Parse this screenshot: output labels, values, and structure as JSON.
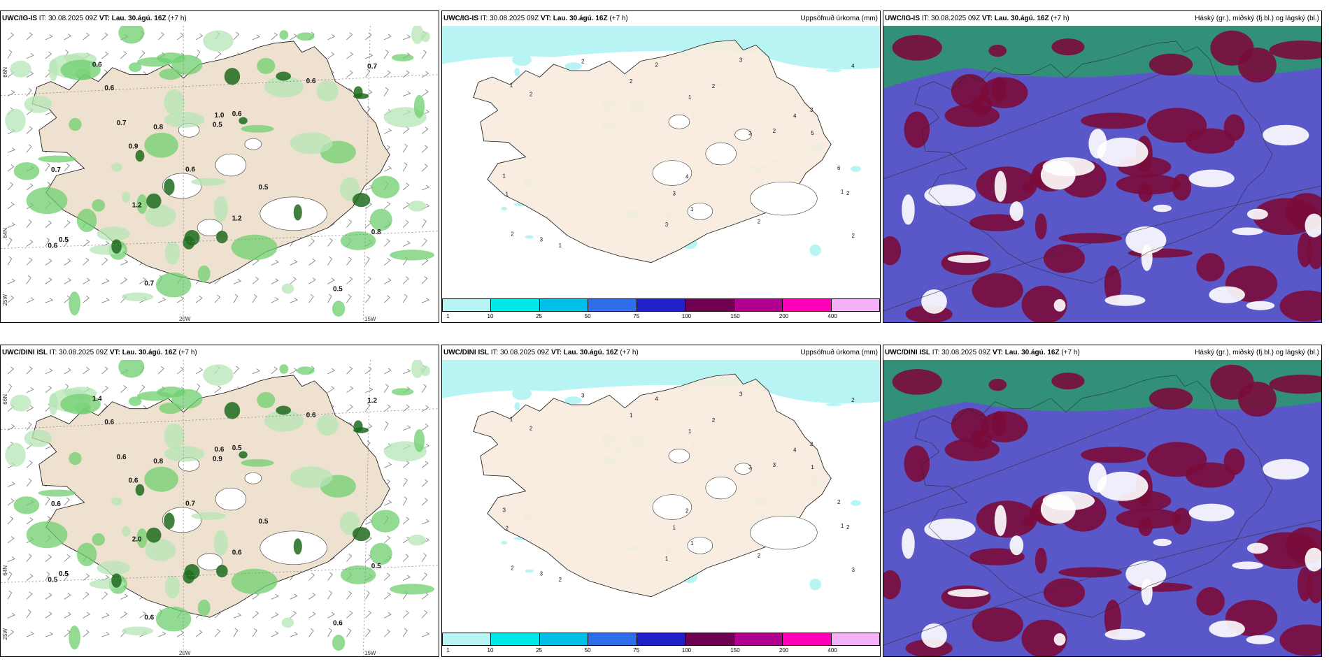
{
  "panels": [
    {
      "id": "p1",
      "model": "UWC/IG-IS",
      "it": "IT: 30.08.2025 09Z",
      "vt_label": "VT:",
      "vt": "Lau. 30.ágú. 16Z",
      "lead": "(+7 h)",
      "right": ""
    },
    {
      "id": "p2",
      "model": "UWC/IG-IS",
      "it": "IT: 30.08.2025 09Z",
      "vt_label": "VT:",
      "vt": "Lau. 30.ágú. 16Z",
      "lead": "(+7 h)",
      "right": "Uppsöfnuð úrkoma (mm)"
    },
    {
      "id": "p3",
      "model": "UWC/IG-IS",
      "it": "IT: 30.08.2025 09Z",
      "vt_label": "VT:",
      "vt": "Lau. 30.ágú. 16Z",
      "lead": "(+7 h)",
      "right": "Háský (gr.), miðský (fj.bl.) og lágský (bl.)"
    },
    {
      "id": "p4",
      "model": "UWC/DINI ISL",
      "it": "IT: 30.08.2025 09Z",
      "vt_label": "VT:",
      "vt": "Lau. 30.ágú. 16Z",
      "lead": "(+7 h)",
      "right": ""
    },
    {
      "id": "p5",
      "model": "UWC/DINI ISL",
      "it": "IT: 30.08.2025 09Z",
      "vt_label": "VT:",
      "vt": "Lau. 30.ágú. 16Z",
      "lead": "(+7 h)",
      "right": "Uppsöfnuð úrkoma (mm)"
    },
    {
      "id": "p6",
      "model": "UWC/DINI ISL",
      "it": "IT: 30.08.2025 09Z",
      "vt_label": "VT:",
      "vt": "Lau. 30.ágú. 16Z",
      "lead": "(+7 h)",
      "right": "Háský (gr.), miðský (fj.bl.) og lágský (bl.)"
    }
  ],
  "axes": {
    "lon_20": "20W",
    "lon_15": "15W",
    "lon_25": "25W",
    "lat_66": "66N",
    "lat_64": "64N"
  },
  "colorbar": {
    "labels": [
      "1",
      "10",
      "25",
      "50",
      "75",
      "100",
      "150",
      "200",
      "400"
    ],
    "colors": [
      "#b8f4f4",
      "#00e8e8",
      "#00c0e8",
      "#2e6ee8",
      "#2020c8",
      "#6e0050",
      "#b00090",
      "#ff00b8",
      "#f4b0f4"
    ]
  },
  "map_colors": {
    "land": "#f7ebdd",
    "land_dark": "#efe1cf",
    "green_light": "#b5e6b5",
    "green_mid": "#6fcf6f",
    "green_dark": "#1e6b1e",
    "rain_light": "#b8f4f4",
    "cloud_high": "#2b9a6b",
    "cloud_mid": "#7a0c3a",
    "cloud_low": "#5a57c8"
  },
  "wind_values_p1": [
    "0.6",
    "0.8",
    "0.7",
    "0.5",
    "0.6",
    "0.6",
    "0.7",
    "0.7",
    "0.6",
    "0.8",
    "0.5",
    "0.5",
    "0.5",
    "1.0",
    "1.2",
    "0.6",
    "0.9",
    "1.2",
    "0.6",
    "0.7"
  ],
  "wind_values_p4": [
    "0.7",
    "0.5",
    "1.2",
    "0.6",
    "0.6",
    "0.5",
    "0.6",
    "0.6",
    "0.6",
    "0.8",
    "0.5",
    "0.9",
    "0.5",
    "0.6",
    "0.6",
    "0.5",
    "0.6",
    "2.0",
    "1.4",
    "0.6"
  ],
  "rain_values_p2": [
    "1",
    "2",
    "3",
    "4",
    "5",
    "6",
    "2",
    "3",
    "4",
    "1",
    "2",
    "3",
    "1",
    "2",
    "3",
    "2",
    "1",
    "2",
    "1",
    "2",
    "3",
    "1",
    "2",
    "2",
    "3",
    "4",
    "1",
    "2"
  ],
  "rain_values_p5": [
    "1",
    "2",
    "3",
    "4",
    "1",
    "2",
    "3",
    "1",
    "2",
    "1",
    "2",
    "3",
    "1",
    "2",
    "3",
    "2",
    "1",
    "2",
    "2",
    "3",
    "1",
    "2",
    "3",
    "1",
    "2",
    "2",
    "3",
    "4"
  ]
}
